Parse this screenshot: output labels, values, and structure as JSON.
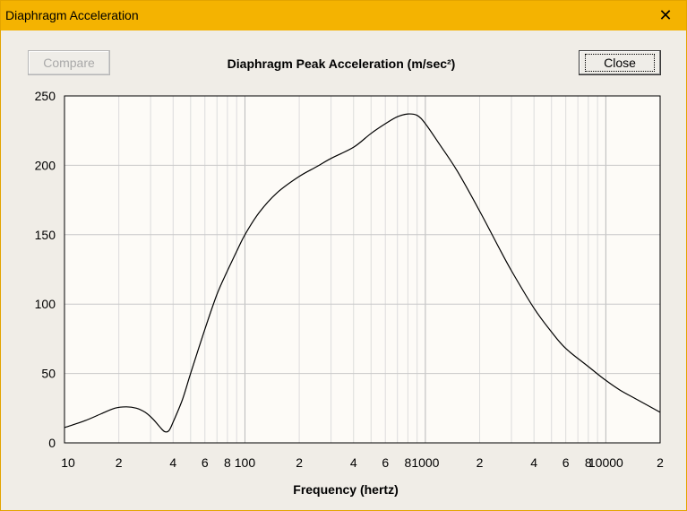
{
  "window": {
    "title": "Diaphragm Acceleration",
    "close_glyph": "✕"
  },
  "toolbar": {
    "compare_label": "Compare",
    "close_label": "Close"
  },
  "chart_data": {
    "type": "line",
    "title": "Diaphragm Peak Acceleration (m/sec²)",
    "xlabel": "Frequency (hertz)",
    "ylabel": "",
    "x_scale": "log",
    "xlim": [
      10,
      20000
    ],
    "ylim": [
      0,
      250
    ],
    "yticks": [
      0,
      50,
      100,
      150,
      200,
      250
    ],
    "xtick_labels": [
      {
        "x": 10,
        "label": "10"
      },
      {
        "x": 20,
        "label": "2"
      },
      {
        "x": 40,
        "label": "4"
      },
      {
        "x": 60,
        "label": "6"
      },
      {
        "x": 80,
        "label": "8"
      },
      {
        "x": 100,
        "label": "100"
      },
      {
        "x": 200,
        "label": "2"
      },
      {
        "x": 400,
        "label": "4"
      },
      {
        "x": 600,
        "label": "6"
      },
      {
        "x": 800,
        "label": "8"
      },
      {
        "x": 1000,
        "label": "1000"
      },
      {
        "x": 2000,
        "label": "2"
      },
      {
        "x": 4000,
        "label": "4"
      },
      {
        "x": 6000,
        "label": "6"
      },
      {
        "x": 8000,
        "label": "8"
      },
      {
        "x": 10000,
        "label": "10000"
      },
      {
        "x": 20000,
        "label": "2"
      }
    ],
    "grid": true,
    "series": [
      {
        "color": "#000000",
        "x": [
          10,
          13,
          16,
          19,
          22,
          25,
          28,
          31,
          34,
          36,
          38,
          40,
          45,
          50,
          60,
          70,
          80,
          90,
          100,
          120,
          150,
          200,
          250,
          300,
          400,
          500,
          600,
          700,
          800,
          900,
          1000,
          1200,
          1500,
          2000,
          2500,
          3000,
          4000,
          5000,
          6000,
          8000,
          10000,
          12000,
          15000,
          20000
        ],
        "y": [
          11,
          16,
          21,
          25,
          26,
          25,
          22,
          17,
          11,
          8,
          9,
          15,
          31,
          50,
          82,
          107,
          124,
          138,
          150,
          166,
          180,
          192,
          199,
          205,
          213,
          223,
          230,
          235,
          237,
          236,
          230,
          215,
          196,
          167,
          143,
          124,
          97,
          80,
          68,
          55,
          45,
          38,
          31,
          22
        ]
      }
    ]
  }
}
